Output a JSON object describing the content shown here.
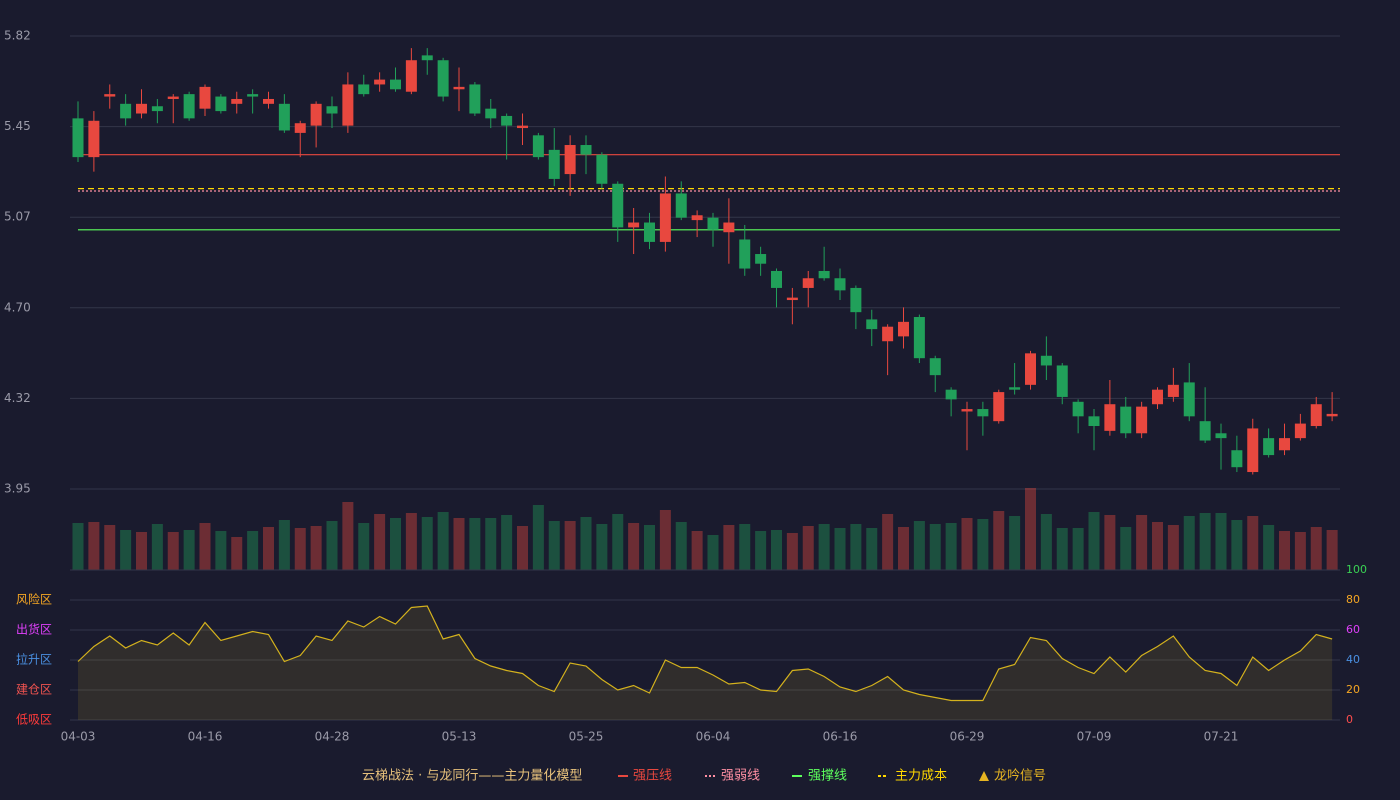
{
  "chart_data": [
    {
      "type": "candlestick",
      "categories": [
        "04-03",
        null,
        null,
        null,
        null,
        null,
        null,
        null,
        "04-16",
        null,
        null,
        null,
        null,
        null,
        null,
        null,
        "04-28",
        null,
        null,
        null,
        null,
        null,
        null,
        null,
        "05-13",
        null,
        null,
        null,
        null,
        null,
        null,
        null,
        "05-25",
        null,
        null,
        null,
        null,
        null,
        null,
        null,
        "06-04",
        null,
        null,
        null,
        null,
        null,
        null,
        null,
        "06-16",
        null,
        null,
        null,
        null,
        null,
        null,
        null,
        "06-29",
        null,
        null,
        null,
        null,
        null,
        null,
        null,
        "07-09",
        null,
        null,
        null,
        null,
        null,
        null,
        null,
        "07-21",
        null,
        null,
        null,
        null,
        null,
        null,
        null
      ],
      "open": [
        5.48,
        5.32,
        5.57,
        5.54,
        5.5,
        5.53,
        5.56,
        5.58,
        5.52,
        5.57,
        5.54,
        5.58,
        5.54,
        5.54,
        5.42,
        5.45,
        5.53,
        5.45,
        5.62,
        5.62,
        5.64,
        5.59,
        5.74,
        5.72,
        5.6,
        5.62,
        5.52,
        5.49,
        5.44,
        5.41,
        5.35,
        5.25,
        5.37,
        5.33,
        5.21,
        5.03,
        5.05,
        4.97,
        5.17,
        5.06,
        5.07,
        5.01,
        4.98,
        4.92,
        4.85,
        4.73,
        4.78,
        4.85,
        4.82,
        4.78,
        4.65,
        4.56,
        4.58,
        4.66,
        4.49,
        4.36,
        4.27,
        4.28,
        4.23,
        4.37,
        4.38,
        4.5,
        4.46,
        4.31,
        4.25,
        4.19,
        4.29,
        4.18,
        4.3,
        4.33,
        4.39,
        4.23,
        4.18,
        4.11,
        4.02,
        4.16,
        4.11,
        4.16,
        4.21,
        4.25
      ],
      "high": [
        5.55,
        5.51,
        5.62,
        5.58,
        5.6,
        5.56,
        5.58,
        5.59,
        5.62,
        5.58,
        5.59,
        5.6,
        5.59,
        5.58,
        5.47,
        5.55,
        5.57,
        5.67,
        5.66,
        5.67,
        5.69,
        5.77,
        5.77,
        5.73,
        5.69,
        5.63,
        5.56,
        5.5,
        5.5,
        5.42,
        5.44,
        5.41,
        5.41,
        5.34,
        5.22,
        5.11,
        5.09,
        5.24,
        5.22,
        5.1,
        5.09,
        5.15,
        5.04,
        4.95,
        4.86,
        4.78,
        4.85,
        4.95,
        4.86,
        4.79,
        4.69,
        4.63,
        4.7,
        4.67,
        4.5,
        4.37,
        4.31,
        4.31,
        4.36,
        4.47,
        4.52,
        4.58,
        4.47,
        4.32,
        4.28,
        4.4,
        4.33,
        4.31,
        4.37,
        4.45,
        4.47,
        4.37,
        4.22,
        4.17,
        4.24,
        4.2,
        4.22,
        4.26,
        4.33,
        4.35
      ],
      "low": [
        5.3,
        5.26,
        5.52,
        5.45,
        5.48,
        5.46,
        5.46,
        5.47,
        5.49,
        5.5,
        5.5,
        5.5,
        5.52,
        5.42,
        5.32,
        5.36,
        5.44,
        5.42,
        5.57,
        5.59,
        5.59,
        5.58,
        5.66,
        5.55,
        5.51,
        5.49,
        5.44,
        5.31,
        5.37,
        5.31,
        5.2,
        5.16,
        5.25,
        5.19,
        4.97,
        4.92,
        4.94,
        4.93,
        5.06,
        4.99,
        4.95,
        4.88,
        4.83,
        4.83,
        4.7,
        4.63,
        4.7,
        4.81,
        4.73,
        4.61,
        4.54,
        4.42,
        4.53,
        4.47,
        4.35,
        4.25,
        4.11,
        4.17,
        4.22,
        4.34,
        4.36,
        4.4,
        4.3,
        4.18,
        4.11,
        4.17,
        4.16,
        4.16,
        4.28,
        4.31,
        4.23,
        4.14,
        4.03,
        4.02,
        4.01,
        4.08,
        4.09,
        4.15,
        4.2,
        4.23
      ],
      "close": [
        5.32,
        5.47,
        5.58,
        5.48,
        5.54,
        5.51,
        5.57,
        5.48,
        5.61,
        5.51,
        5.56,
        5.57,
        5.56,
        5.43,
        5.46,
        5.54,
        5.5,
        5.62,
        5.58,
        5.64,
        5.6,
        5.72,
        5.72,
        5.57,
        5.61,
        5.5,
        5.48,
        5.45,
        5.45,
        5.32,
        5.23,
        5.37,
        5.33,
        5.21,
        5.03,
        5.05,
        4.97,
        5.17,
        5.07,
        5.08,
        5.02,
        5.05,
        4.86,
        4.88,
        4.78,
        4.74,
        4.82,
        4.82,
        4.77,
        4.68,
        4.61,
        4.62,
        4.64,
        4.49,
        4.42,
        4.32,
        4.28,
        4.25,
        4.35,
        4.36,
        4.51,
        4.46,
        4.33,
        4.25,
        4.21,
        4.3,
        4.18,
        4.29,
        4.36,
        4.38,
        4.25,
        4.15,
        4.16,
        4.04,
        4.2,
        4.09,
        4.16,
        4.22,
        4.3,
        4.26
      ],
      "up_color": "#e8483f",
      "down_color": "#21a05a",
      "ylim": [
        3.95,
        5.82
      ],
      "yticks": [
        3.95,
        {
          "value": 4.324,
          "label": "4.32"
        },
        {
          "value": 4.698,
          "label": "4.70"
        },
        {
          "value": 5.072,
          "label": "5.07"
        },
        {
          "value": 5.446,
          "label": "5.45"
        },
        5.82
      ],
      "grid": true,
      "legend_title": "云梯战法 · 与龙同行——主力量化模型",
      "lines": [
        {
          "name": "强压线",
          "value": 5.33,
          "color": "#e8483f",
          "style": "solid"
        },
        {
          "name": "强弱线",
          "value": 5.18,
          "color": "#ff8fa3",
          "style": "dotted"
        },
        {
          "name": "强撑线",
          "value": 5.02,
          "color": "#5dff5d",
          "style": "solid"
        },
        {
          "name": "主力成本",
          "value": 5.19,
          "color": "#ffd700",
          "style": "dashed"
        }
      ],
      "signal": {
        "name": "龙吟信号",
        "color": "#e6b422"
      }
    },
    {
      "type": "bar",
      "values": [
        47,
        48,
        45,
        40,
        38,
        46,
        38,
        40,
        47,
        39,
        33,
        39,
        43,
        50,
        42,
        44,
        49,
        68,
        47,
        56,
        52,
        57,
        53,
        58,
        52,
        52,
        52,
        55,
        44,
        65,
        49,
        49,
        53,
        46,
        56,
        47,
        45,
        60,
        48,
        39,
        35,
        45,
        46,
        39,
        40,
        37,
        44,
        46,
        42,
        46,
        42,
        56,
        43,
        49,
        46,
        47,
        52,
        51,
        59,
        54,
        82,
        56,
        42,
        42,
        58,
        55,
        43,
        55,
        48,
        45,
        54,
        57,
        57,
        50,
        54,
        45,
        39,
        38,
        43,
        40
      ]
    },
    {
      "type": "line",
      "values": [
        39,
        49,
        56,
        48,
        53,
        50,
        58,
        50,
        65,
        53,
        56,
        59,
        57,
        39,
        43,
        56,
        53,
        66,
        62,
        69,
        64,
        75,
        76,
        54,
        57,
        41,
        36,
        33,
        31,
        23,
        19,
        38,
        36,
        27,
        20,
        23,
        18,
        40,
        35,
        35,
        30,
        24,
        25,
        20,
        19,
        33,
        34,
        29,
        22,
        19,
        23,
        29,
        20,
        17,
        15,
        13,
        13,
        13,
        34,
        37,
        55,
        53,
        41,
        35,
        31,
        42,
        32,
        43,
        49,
        56,
        42,
        33,
        31,
        23,
        42,
        33,
        40,
        46,
        57,
        54
      ],
      "color": "#d4b21d",
      "ylim": [
        0,
        100
      ],
      "yticks": [
        0,
        20,
        40,
        60,
        80,
        100
      ],
      "ytick_colors": [
        "#ff4d4d",
        "#f5a623",
        "#4a90e2",
        "#e040fb",
        "#f5a623",
        "#39d353"
      ],
      "zones": [
        {
          "value": 80,
          "label": "风险区",
          "color": "#f5a623"
        },
        {
          "value": 60,
          "label": "出货区",
          "color": "#e040fb"
        },
        {
          "value": 40,
          "label": "拉升区",
          "color": "#4a90e2"
        },
        {
          "value": 20,
          "label": "建仓区",
          "color": "#ef5350"
        },
        {
          "value": 0,
          "label": "低吸区",
          "color": "#ff3b3b"
        }
      ]
    }
  ]
}
